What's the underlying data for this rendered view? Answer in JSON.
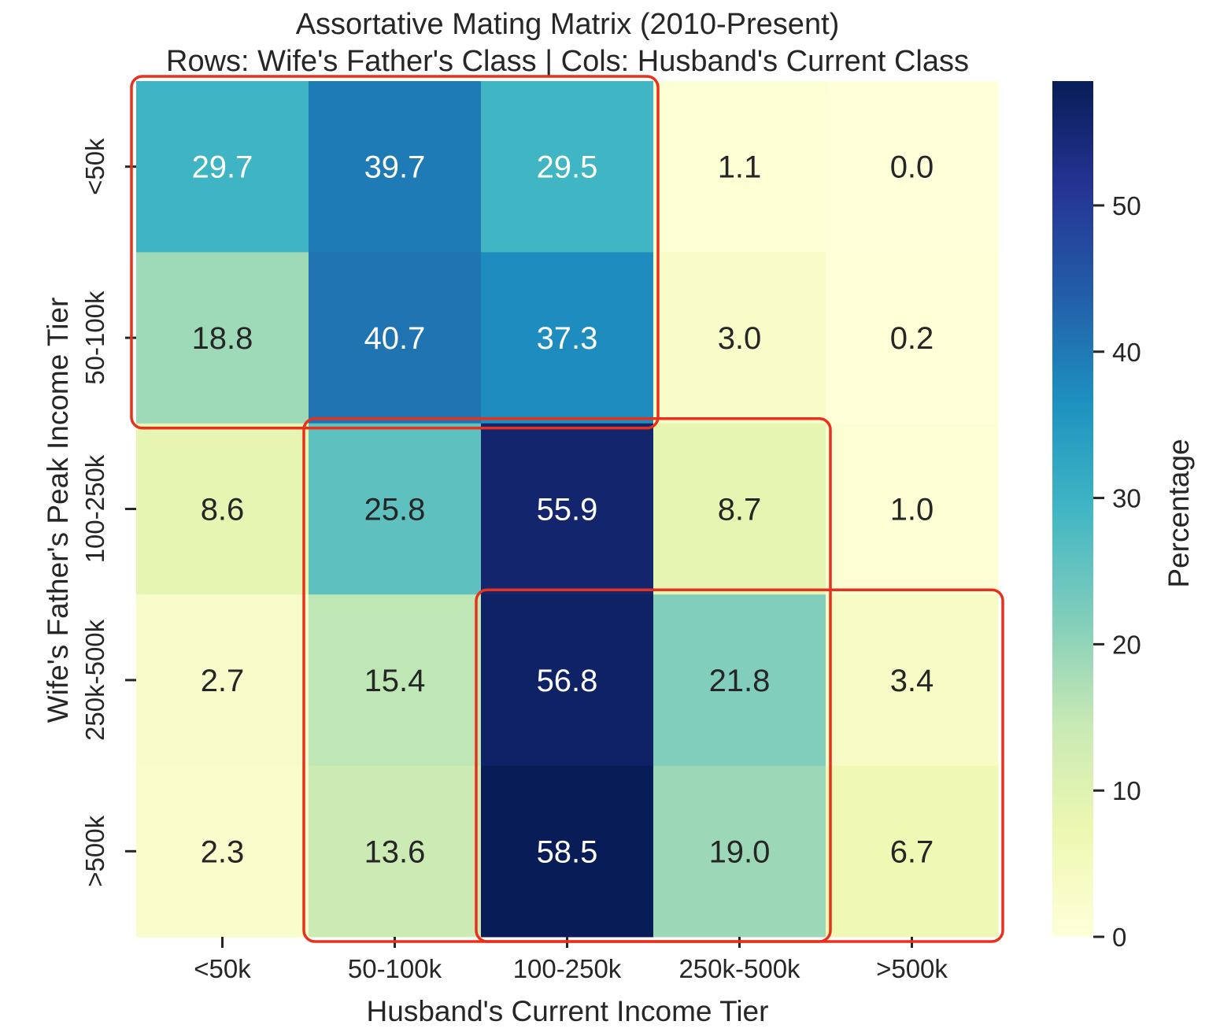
{
  "chart_data": {
    "type": "heatmap",
    "title": "Assortative Mating Matrix (2010-Present)",
    "subtitle": "Rows: Wife's Father's Class | Cols: Husband's Current Class",
    "xlabel": "Husband's Current Income Tier",
    "ylabel": "Wife's Father's Peak Income Tier",
    "x_categories": [
      "<50k",
      "50-100k",
      "100-250k",
      "250k-500k",
      ">500k"
    ],
    "y_categories": [
      "<50k",
      "50-100k",
      "100-250k",
      "250k-500k",
      ">500k"
    ],
    "values": [
      [
        29.7,
        39.7,
        29.5,
        1.1,
        0.0
      ],
      [
        18.8,
        40.7,
        37.3,
        3.0,
        0.2
      ],
      [
        8.6,
        25.8,
        55.9,
        8.7,
        1.0
      ],
      [
        2.7,
        15.4,
        56.8,
        21.8,
        3.4
      ],
      [
        2.3,
        13.6,
        58.5,
        19.0,
        6.7
      ]
    ],
    "value_format": "0.0",
    "colormap": "YlGnBu",
    "colorbar": {
      "label": "Percentage",
      "range": [
        0,
        58.5
      ],
      "ticks": [
        0,
        10,
        20,
        30,
        40,
        50
      ],
      "tick_labels": [
        "0",
        "10",
        "20",
        "30",
        "40",
        "50"
      ]
    },
    "highlight_boxes": [
      {
        "rows": [
          0,
          1
        ],
        "cols": [
          0,
          2
        ]
      },
      {
        "rows": [
          2,
          4
        ],
        "cols": [
          1,
          3
        ]
      },
      {
        "rows": [
          3,
          4
        ],
        "cols": [
          2,
          4
        ]
      }
    ],
    "highlight_color": "#e8301c"
  }
}
